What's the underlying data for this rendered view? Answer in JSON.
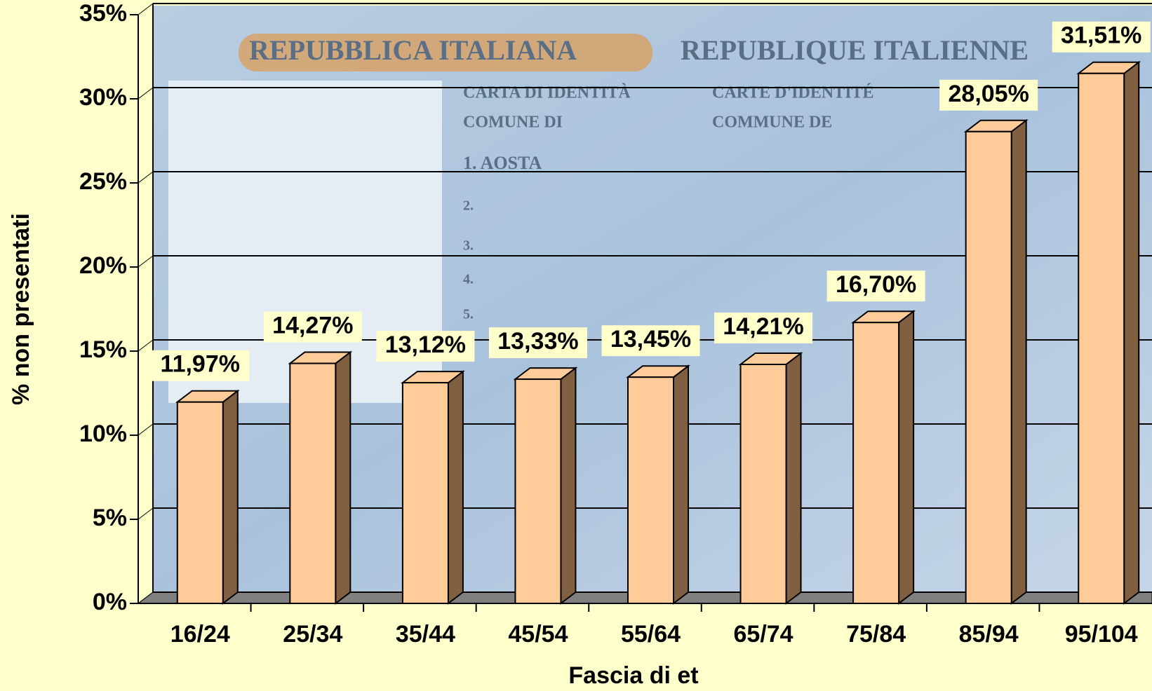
{
  "chart_data": {
    "type": "bar3d",
    "categories": [
      "16/24",
      "25/34",
      "35/44",
      "45/54",
      "55/64",
      "65/74",
      "75/84",
      "85/94",
      "95/104"
    ],
    "values": [
      11.97,
      14.27,
      13.12,
      13.33,
      13.45,
      14.21,
      16.7,
      28.05,
      31.51
    ],
    "value_labels": [
      "11,97%",
      "14,27%",
      "13,12%",
      "13,33%",
      "13,45%",
      "14,21%",
      "16,70%",
      "28,05%",
      "31,51%"
    ],
    "color": "#ffcc99",
    "side_color": "#806040",
    "ylim": [
      0,
      35
    ],
    "yticks": [
      {
        "value": 0,
        "label": "0%"
      },
      {
        "value": 5,
        "label": "5%"
      },
      {
        "value": 10,
        "label": "10%"
      },
      {
        "value": 15,
        "label": "15%"
      },
      {
        "value": 20,
        "label": "20%"
      },
      {
        "value": 25,
        "label": "25%"
      },
      {
        "value": 30,
        "label": "30%"
      },
      {
        "value": 35,
        "label": "35%"
      }
    ],
    "grid": true,
    "xlabel": "Fascia di et",
    "ylabel": "% non presentati"
  },
  "background": {
    "texts": [
      "REPUBBLICA ITALIANA",
      "REPUBLIQUE ITALIENNE",
      "CARTA DI IDENTITÀ",
      "CARTE D'IDENTITÉ",
      "COMUNE DI",
      "COMMUNE DE",
      "1. AOSTA",
      "2.",
      "3.",
      "4.",
      "5."
    ]
  }
}
